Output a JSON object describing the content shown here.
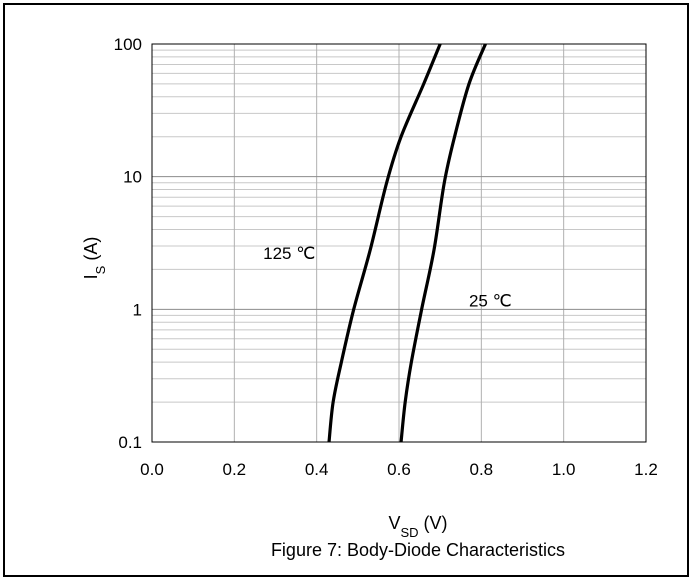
{
  "chart_data": {
    "type": "line",
    "title": "Figure 7: Body-Diode Characteristics",
    "xlabel": {
      "main": "V",
      "sub": "SD",
      "unit": " (V)"
    },
    "ylabel": {
      "main": "I",
      "sub": "S",
      "unit": " (A)"
    },
    "xlim": [
      0,
      1.2
    ],
    "ylim": [
      0.1,
      100
    ],
    "yscale": "log",
    "grid": true,
    "xticks": [
      "0.0",
      "0.2",
      "0.4",
      "0.6",
      "0.8",
      "1.0",
      "1.2"
    ],
    "yticks": [
      "0.1",
      "1",
      "10",
      "100"
    ],
    "annotations": [
      {
        "text": "125 ℃",
        "x": 0.27,
        "y": 2.4
      },
      {
        "text": "25 ℃",
        "x": 0.77,
        "y": 1.05
      }
    ],
    "series": [
      {
        "x": [
          0.43,
          0.44,
          0.46,
          0.49,
          0.53,
          0.57,
          0.605,
          0.66,
          0.7
        ],
        "y": [
          0.1,
          0.2,
          0.4,
          1.0,
          2.8,
          9.0,
          20,
          50,
          100
        ],
        "color": "#000000"
      },
      {
        "x": [
          0.605,
          0.615,
          0.63,
          0.655,
          0.685,
          0.71,
          0.735,
          0.77,
          0.81
        ],
        "y": [
          0.1,
          0.2,
          0.4,
          1.0,
          2.8,
          9.0,
          20,
          50,
          100
        ],
        "color": "#000000"
      }
    ]
  }
}
